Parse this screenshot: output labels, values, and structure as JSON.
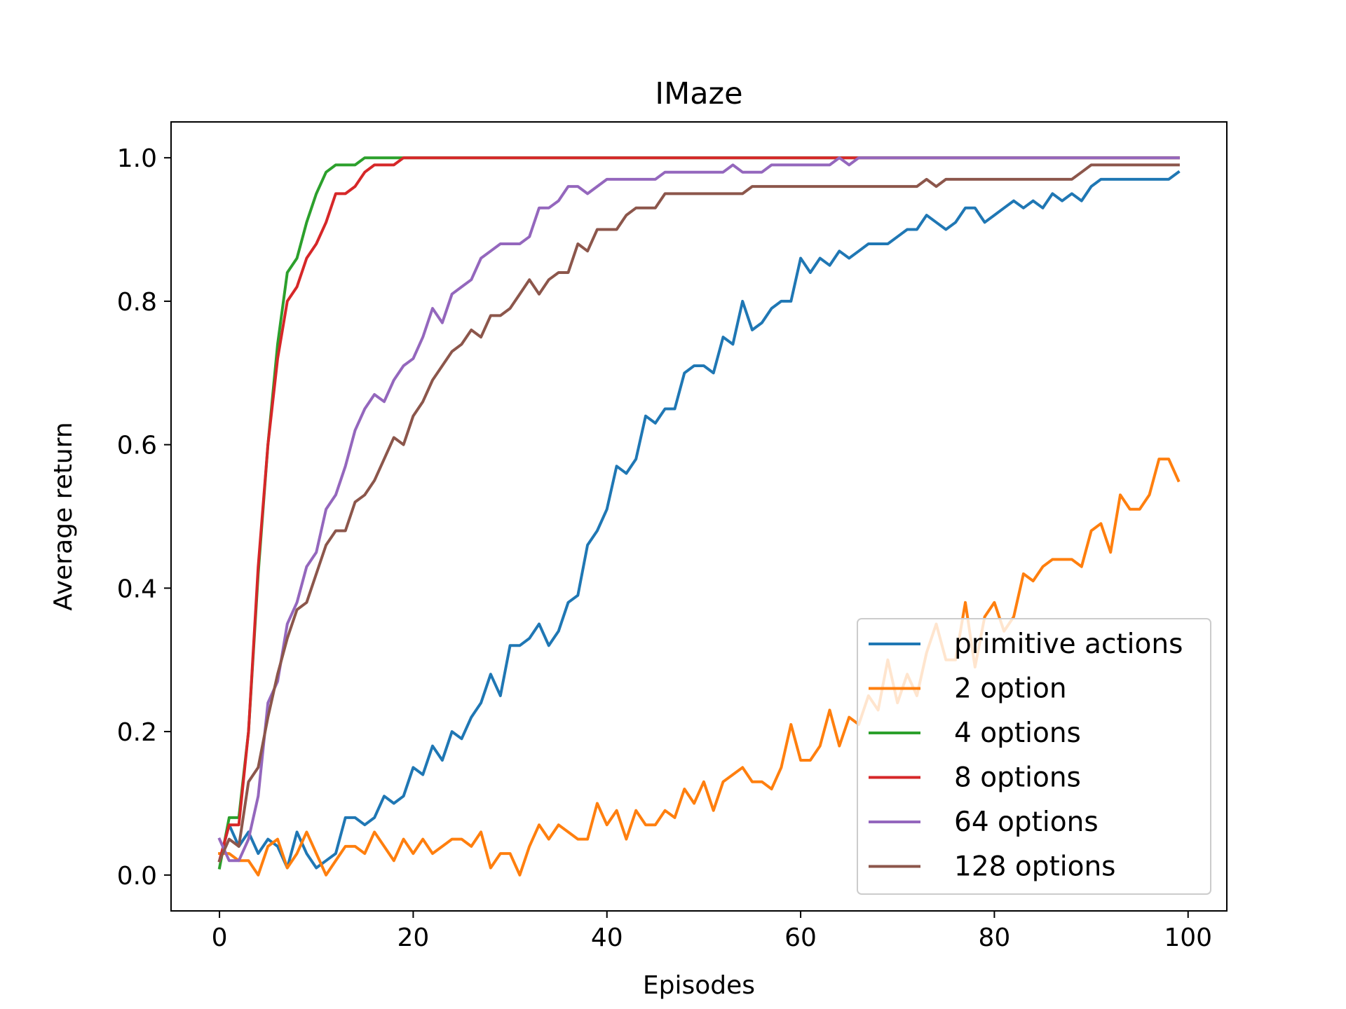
{
  "chart_data": {
    "type": "line",
    "title": "IMaze",
    "xlabel": "Episodes",
    "ylabel": "Average return",
    "xlim": [
      -5,
      104
    ],
    "ylim": [
      -0.05,
      1.05
    ],
    "xticks": [
      0,
      20,
      40,
      60,
      80,
      100
    ],
    "yticks": [
      0.0,
      0.2,
      0.4,
      0.6,
      0.8,
      1.0
    ],
    "xtick_labels": [
      "0",
      "20",
      "40",
      "60",
      "80",
      "100"
    ],
    "ytick_labels": [
      "0.0",
      "0.2",
      "0.4",
      "0.6",
      "0.8",
      "1.0"
    ],
    "grid": false,
    "legend_position": "lower-right",
    "series": [
      {
        "name": "primitive actions",
        "color": "#1f77b4",
        "x": [
          0,
          1,
          2,
          3,
          4,
          5,
          6,
          7,
          8,
          9,
          10,
          11,
          12,
          13,
          14,
          15,
          16,
          17,
          18,
          19,
          20,
          21,
          22,
          23,
          24,
          25,
          26,
          27,
          28,
          29,
          30,
          31,
          32,
          33,
          34,
          35,
          36,
          37,
          38,
          39,
          40,
          41,
          42,
          43,
          44,
          45,
          46,
          47,
          48,
          49,
          50,
          51,
          52,
          53,
          54,
          55,
          56,
          57,
          58,
          59,
          60,
          61,
          62,
          63,
          64,
          65,
          66,
          67,
          68,
          69,
          70,
          71,
          72,
          73,
          74,
          75,
          76,
          77,
          78,
          79,
          80,
          81,
          82,
          83,
          84,
          85,
          86,
          87,
          88,
          89,
          90,
          91,
          92,
          93,
          94,
          95,
          96,
          97,
          98,
          99
        ],
        "values": [
          0.02,
          0.07,
          0.04,
          0.06,
          0.03,
          0.05,
          0.04,
          0.01,
          0.06,
          0.03,
          0.01,
          0.02,
          0.03,
          0.08,
          0.08,
          0.07,
          0.08,
          0.11,
          0.1,
          0.11,
          0.15,
          0.14,
          0.18,
          0.16,
          0.2,
          0.19,
          0.22,
          0.24,
          0.28,
          0.25,
          0.32,
          0.32,
          0.33,
          0.35,
          0.32,
          0.34,
          0.38,
          0.39,
          0.46,
          0.48,
          0.51,
          0.57,
          0.56,
          0.58,
          0.64,
          0.63,
          0.65,
          0.65,
          0.7,
          0.71,
          0.71,
          0.7,
          0.75,
          0.74,
          0.8,
          0.76,
          0.77,
          0.79,
          0.8,
          0.8,
          0.86,
          0.84,
          0.86,
          0.85,
          0.87,
          0.86,
          0.87,
          0.88,
          0.88,
          0.88,
          0.89,
          0.9,
          0.9,
          0.92,
          0.91,
          0.9,
          0.91,
          0.93,
          0.93,
          0.91,
          0.92,
          0.93,
          0.94,
          0.93,
          0.94,
          0.93,
          0.95,
          0.94,
          0.95,
          0.94,
          0.96,
          0.97,
          0.97,
          0.97,
          0.97,
          0.97,
          0.97,
          0.97,
          0.97,
          0.98
        ]
      },
      {
        "name": "2 option",
        "color": "#ff7f0e",
        "x": [
          0,
          1,
          2,
          3,
          4,
          5,
          6,
          7,
          8,
          9,
          10,
          11,
          12,
          13,
          14,
          15,
          16,
          17,
          18,
          19,
          20,
          21,
          22,
          23,
          24,
          25,
          26,
          27,
          28,
          29,
          30,
          31,
          32,
          33,
          34,
          35,
          36,
          37,
          38,
          39,
          40,
          41,
          42,
          43,
          44,
          45,
          46,
          47,
          48,
          49,
          50,
          51,
          52,
          53,
          54,
          55,
          56,
          57,
          58,
          59,
          60,
          61,
          62,
          63,
          64,
          65,
          66,
          67,
          68,
          69,
          70,
          71,
          72,
          73,
          74,
          75,
          76,
          77,
          78,
          79,
          80,
          81,
          82,
          83,
          84,
          85,
          86,
          87,
          88,
          89,
          90,
          91,
          92,
          93,
          94,
          95,
          96,
          97,
          98,
          99
        ],
        "values": [
          0.03,
          0.03,
          0.02,
          0.02,
          0.0,
          0.04,
          0.05,
          0.01,
          0.03,
          0.06,
          0.03,
          0.0,
          0.02,
          0.04,
          0.04,
          0.03,
          0.06,
          0.04,
          0.02,
          0.05,
          0.03,
          0.05,
          0.03,
          0.04,
          0.05,
          0.05,
          0.04,
          0.06,
          0.01,
          0.03,
          0.03,
          0.0,
          0.04,
          0.07,
          0.05,
          0.07,
          0.06,
          0.05,
          0.05,
          0.1,
          0.07,
          0.09,
          0.05,
          0.09,
          0.07,
          0.07,
          0.09,
          0.08,
          0.12,
          0.1,
          0.13,
          0.09,
          0.13,
          0.14,
          0.15,
          0.13,
          0.13,
          0.12,
          0.15,
          0.21,
          0.16,
          0.16,
          0.18,
          0.23,
          0.18,
          0.22,
          0.21,
          0.25,
          0.23,
          0.3,
          0.24,
          0.28,
          0.25,
          0.31,
          0.35,
          0.3,
          0.3,
          0.38,
          0.29,
          0.36,
          0.38,
          0.34,
          0.36,
          0.42,
          0.41,
          0.43,
          0.44,
          0.44,
          0.44,
          0.43,
          0.48,
          0.49,
          0.45,
          0.53,
          0.51,
          0.51,
          0.53,
          0.58,
          0.58,
          0.55
        ]
      },
      {
        "name": "4 options",
        "color": "#2ca02c",
        "x": [
          0,
          1,
          2,
          3,
          4,
          5,
          6,
          7,
          8,
          9,
          10,
          11,
          12,
          13,
          14,
          15,
          16,
          17,
          18,
          19,
          20,
          21,
          22,
          23,
          24,
          25,
          26,
          27,
          28,
          29,
          30,
          31,
          32,
          33,
          34,
          35,
          36,
          37,
          38,
          39,
          40,
          41,
          42,
          43,
          44,
          45,
          46,
          47,
          48,
          49,
          50,
          51,
          52,
          53,
          54,
          55,
          56,
          57,
          58,
          59,
          60,
          61,
          62,
          63,
          64,
          65,
          66,
          67,
          68,
          69,
          70,
          71,
          72,
          73,
          74,
          75,
          76,
          77,
          78,
          79,
          80,
          81,
          82,
          83,
          84,
          85,
          86,
          87,
          88,
          89,
          90,
          91,
          92,
          93,
          94,
          95,
          96,
          97,
          98,
          99
        ],
        "values": [
          0.01,
          0.08,
          0.08,
          0.2,
          0.42,
          0.6,
          0.74,
          0.84,
          0.86,
          0.91,
          0.95,
          0.98,
          0.99,
          0.99,
          0.99,
          1.0,
          1.0,
          1.0,
          1.0,
          1.0,
          1.0,
          1.0,
          1.0,
          1.0,
          1.0,
          1.0,
          1.0,
          1.0,
          1.0,
          1.0,
          1.0,
          1.0,
          1.0,
          1.0,
          1.0,
          1.0,
          1.0,
          1.0,
          1.0,
          1.0,
          1.0,
          1.0,
          1.0,
          1.0,
          1.0,
          1.0,
          1.0,
          1.0,
          1.0,
          1.0,
          1.0,
          1.0,
          1.0,
          1.0,
          1.0,
          1.0,
          1.0,
          1.0,
          1.0,
          1.0,
          1.0,
          1.0,
          1.0,
          1.0,
          1.0,
          1.0,
          1.0,
          1.0,
          1.0,
          1.0,
          1.0,
          1.0,
          1.0,
          1.0,
          1.0,
          1.0,
          1.0,
          1.0,
          1.0,
          1.0,
          1.0,
          1.0,
          1.0,
          1.0,
          1.0,
          1.0,
          1.0,
          1.0,
          1.0,
          1.0,
          1.0,
          1.0,
          1.0,
          1.0,
          1.0,
          1.0,
          1.0,
          1.0,
          1.0,
          1.0
        ]
      },
      {
        "name": "8 options",
        "color": "#d62728",
        "x": [
          0,
          1,
          2,
          3,
          4,
          5,
          6,
          7,
          8,
          9,
          10,
          11,
          12,
          13,
          14,
          15,
          16,
          17,
          18,
          19,
          20,
          21,
          22,
          23,
          24,
          25,
          26,
          27,
          28,
          29,
          30,
          31,
          32,
          33,
          34,
          35,
          36,
          37,
          38,
          39,
          40,
          41,
          42,
          43,
          44,
          45,
          46,
          47,
          48,
          49,
          50,
          51,
          52,
          53,
          54,
          55,
          56,
          57,
          58,
          59,
          60,
          61,
          62,
          63,
          64,
          65,
          66,
          67,
          68,
          69,
          70,
          71,
          72,
          73,
          74,
          75,
          76,
          77,
          78,
          79,
          80,
          81,
          82,
          83,
          84,
          85,
          86,
          87,
          88,
          89,
          90,
          91,
          92,
          93,
          94,
          95,
          96,
          97,
          98,
          99
        ],
        "values": [
          0.02,
          0.07,
          0.07,
          0.2,
          0.43,
          0.6,
          0.72,
          0.8,
          0.82,
          0.86,
          0.88,
          0.91,
          0.95,
          0.95,
          0.96,
          0.98,
          0.99,
          0.99,
          0.99,
          1.0,
          1.0,
          1.0,
          1.0,
          1.0,
          1.0,
          1.0,
          1.0,
          1.0,
          1.0,
          1.0,
          1.0,
          1.0,
          1.0,
          1.0,
          1.0,
          1.0,
          1.0,
          1.0,
          1.0,
          1.0,
          1.0,
          1.0,
          1.0,
          1.0,
          1.0,
          1.0,
          1.0,
          1.0,
          1.0,
          1.0,
          1.0,
          1.0,
          1.0,
          1.0,
          1.0,
          1.0,
          1.0,
          1.0,
          1.0,
          1.0,
          1.0,
          1.0,
          1.0,
          1.0,
          1.0,
          1.0,
          1.0,
          1.0,
          1.0,
          1.0,
          1.0,
          1.0,
          1.0,
          1.0,
          1.0,
          1.0,
          1.0,
          1.0,
          1.0,
          1.0,
          1.0,
          1.0,
          1.0,
          1.0,
          1.0,
          1.0,
          1.0,
          1.0,
          1.0,
          1.0,
          1.0,
          1.0,
          1.0,
          1.0,
          1.0,
          1.0,
          1.0,
          1.0,
          1.0,
          1.0
        ]
      },
      {
        "name": "64 options",
        "color": "#9467bd",
        "x": [
          0,
          1,
          2,
          3,
          4,
          5,
          6,
          7,
          8,
          9,
          10,
          11,
          12,
          13,
          14,
          15,
          16,
          17,
          18,
          19,
          20,
          21,
          22,
          23,
          24,
          25,
          26,
          27,
          28,
          29,
          30,
          31,
          32,
          33,
          34,
          35,
          36,
          37,
          38,
          39,
          40,
          41,
          42,
          43,
          44,
          45,
          46,
          47,
          48,
          49,
          50,
          51,
          52,
          53,
          54,
          55,
          56,
          57,
          58,
          59,
          60,
          61,
          62,
          63,
          64,
          65,
          66,
          67,
          68,
          69,
          70,
          71,
          72,
          73,
          74,
          75,
          76,
          77,
          78,
          79,
          80,
          81,
          82,
          83,
          84,
          85,
          86,
          87,
          88,
          89,
          90,
          91,
          92,
          93,
          94,
          95,
          96,
          97,
          98,
          99
        ],
        "values": [
          0.05,
          0.02,
          0.02,
          0.05,
          0.11,
          0.24,
          0.27,
          0.35,
          0.38,
          0.43,
          0.45,
          0.51,
          0.53,
          0.57,
          0.62,
          0.65,
          0.67,
          0.66,
          0.69,
          0.71,
          0.72,
          0.75,
          0.79,
          0.77,
          0.81,
          0.82,
          0.83,
          0.86,
          0.87,
          0.88,
          0.88,
          0.88,
          0.89,
          0.93,
          0.93,
          0.94,
          0.96,
          0.96,
          0.95,
          0.96,
          0.97,
          0.97,
          0.97,
          0.97,
          0.97,
          0.97,
          0.98,
          0.98,
          0.98,
          0.98,
          0.98,
          0.98,
          0.98,
          0.99,
          0.98,
          0.98,
          0.98,
          0.99,
          0.99,
          0.99,
          0.99,
          0.99,
          0.99,
          0.99,
          1.0,
          0.99,
          1.0,
          1.0,
          1.0,
          1.0,
          1.0,
          1.0,
          1.0,
          1.0,
          1.0,
          1.0,
          1.0,
          1.0,
          1.0,
          1.0,
          1.0,
          1.0,
          1.0,
          1.0,
          1.0,
          1.0,
          1.0,
          1.0,
          1.0,
          1.0,
          1.0,
          1.0,
          1.0,
          1.0,
          1.0,
          1.0,
          1.0,
          1.0,
          1.0,
          1.0
        ]
      },
      {
        "name": "128 options",
        "color": "#8c564b",
        "x": [
          0,
          1,
          2,
          3,
          4,
          5,
          6,
          7,
          8,
          9,
          10,
          11,
          12,
          13,
          14,
          15,
          16,
          17,
          18,
          19,
          20,
          21,
          22,
          23,
          24,
          25,
          26,
          27,
          28,
          29,
          30,
          31,
          32,
          33,
          34,
          35,
          36,
          37,
          38,
          39,
          40,
          41,
          42,
          43,
          44,
          45,
          46,
          47,
          48,
          49,
          50,
          51,
          52,
          53,
          54,
          55,
          56,
          57,
          58,
          59,
          60,
          61,
          62,
          63,
          64,
          65,
          66,
          67,
          68,
          69,
          70,
          71,
          72,
          73,
          74,
          75,
          76,
          77,
          78,
          79,
          80,
          81,
          82,
          83,
          84,
          85,
          86,
          87,
          88,
          89,
          90,
          91,
          92,
          93,
          94,
          95,
          96,
          97,
          98,
          99
        ],
        "values": [
          0.02,
          0.05,
          0.04,
          0.13,
          0.15,
          0.22,
          0.28,
          0.33,
          0.37,
          0.38,
          0.42,
          0.46,
          0.48,
          0.48,
          0.52,
          0.53,
          0.55,
          0.58,
          0.61,
          0.6,
          0.64,
          0.66,
          0.69,
          0.71,
          0.73,
          0.74,
          0.76,
          0.75,
          0.78,
          0.78,
          0.79,
          0.81,
          0.83,
          0.81,
          0.83,
          0.84,
          0.84,
          0.88,
          0.87,
          0.9,
          0.9,
          0.9,
          0.92,
          0.93,
          0.93,
          0.93,
          0.95,
          0.95,
          0.95,
          0.95,
          0.95,
          0.95,
          0.95,
          0.95,
          0.95,
          0.96,
          0.96,
          0.96,
          0.96,
          0.96,
          0.96,
          0.96,
          0.96,
          0.96,
          0.96,
          0.96,
          0.96,
          0.96,
          0.96,
          0.96,
          0.96,
          0.96,
          0.96,
          0.97,
          0.96,
          0.97,
          0.97,
          0.97,
          0.97,
          0.97,
          0.97,
          0.97,
          0.97,
          0.97,
          0.97,
          0.97,
          0.97,
          0.97,
          0.97,
          0.98,
          0.99,
          0.99,
          0.99,
          0.99,
          0.99,
          0.99,
          0.99,
          0.99,
          0.99,
          0.99
        ]
      }
    ]
  }
}
